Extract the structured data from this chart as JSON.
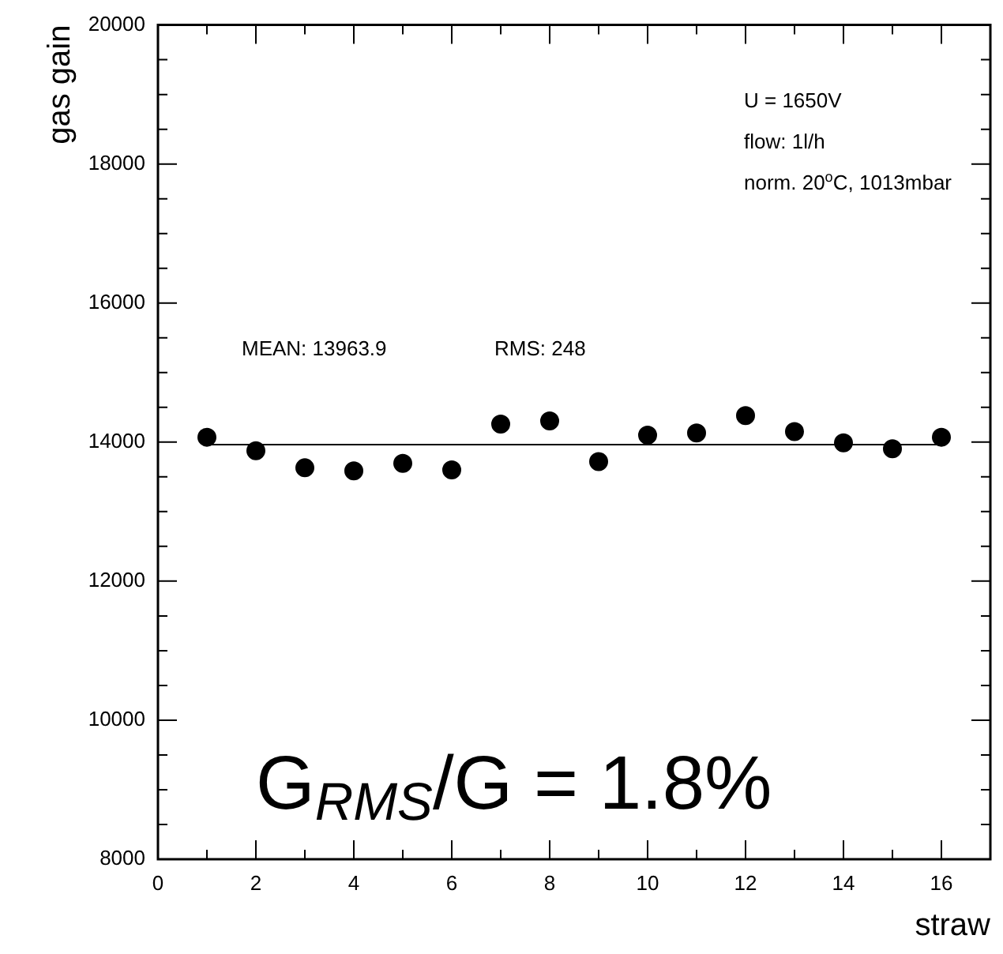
{
  "chart_data": {
    "type": "scatter",
    "xlabel": "straw",
    "ylabel": "gas gain",
    "x": [
      1,
      2,
      3,
      4,
      5,
      6,
      7,
      8,
      9,
      10,
      11,
      12,
      13,
      14,
      15,
      16
    ],
    "xlim": [
      0,
      17
    ],
    "xticks": [
      0,
      {
        "value": 1,
        "label": null
      },
      2,
      {
        "value": 3,
        "label": null
      },
      4,
      {
        "value": 5,
        "label": null
      },
      6,
      {
        "value": 7,
        "label": null
      },
      8,
      {
        "value": 9,
        "label": null
      },
      10,
      {
        "value": 11,
        "label": null
      },
      12,
      {
        "value": 13,
        "label": null
      },
      14,
      {
        "value": 15,
        "label": null
      },
      16,
      {
        "value": 17,
        "label": null
      }
    ],
    "ylim": [
      8000,
      20000
    ],
    "yticks": [
      8000,
      {
        "value": 8500,
        "label": null
      },
      {
        "value": 9000,
        "label": null
      },
      {
        "value": 9500,
        "label": null
      },
      10000,
      {
        "value": 10500,
        "label": null
      },
      {
        "value": 11000,
        "label": null
      },
      {
        "value": 11500,
        "label": null
      },
      12000,
      {
        "value": 12500,
        "label": null
      },
      {
        "value": 13000,
        "label": null
      },
      {
        "value": 13500,
        "label": null
      },
      14000,
      {
        "value": 14500,
        "label": null
      },
      {
        "value": 15000,
        "label": null
      },
      {
        "value": 15500,
        "label": null
      },
      16000,
      {
        "value": 16500,
        "label": null
      },
      {
        "value": 17000,
        "label": null
      },
      {
        "value": 17500,
        "label": null
      },
      18000,
      {
        "value": 18500,
        "label": null
      },
      {
        "value": 19000,
        "label": null
      },
      {
        "value": 19500,
        "label": null
      },
      20000
    ],
    "marker": "circle",
    "series": [
      {
        "color": "#000000",
        "values": [
          14070,
          13875,
          13630,
          13585,
          13695,
          13600,
          14260,
          14305,
          13720,
          14100,
          14130,
          14380,
          14150,
          13990,
          13905,
          14070
        ]
      },
      {
        "type": "line",
        "marker": "none",
        "color": "#000000",
        "x": [
          1,
          16
        ],
        "values": [
          13963.9,
          13963.9
        ]
      }
    ],
    "annotations": [
      "MEAN: 13963.9",
      "RMS: 248",
      "U = 1650V",
      "flow: 1l/h",
      "norm. 20$^{o}$C, 1013mbar",
      "G$_{RMS}$/G = 1.8%"
    ]
  }
}
